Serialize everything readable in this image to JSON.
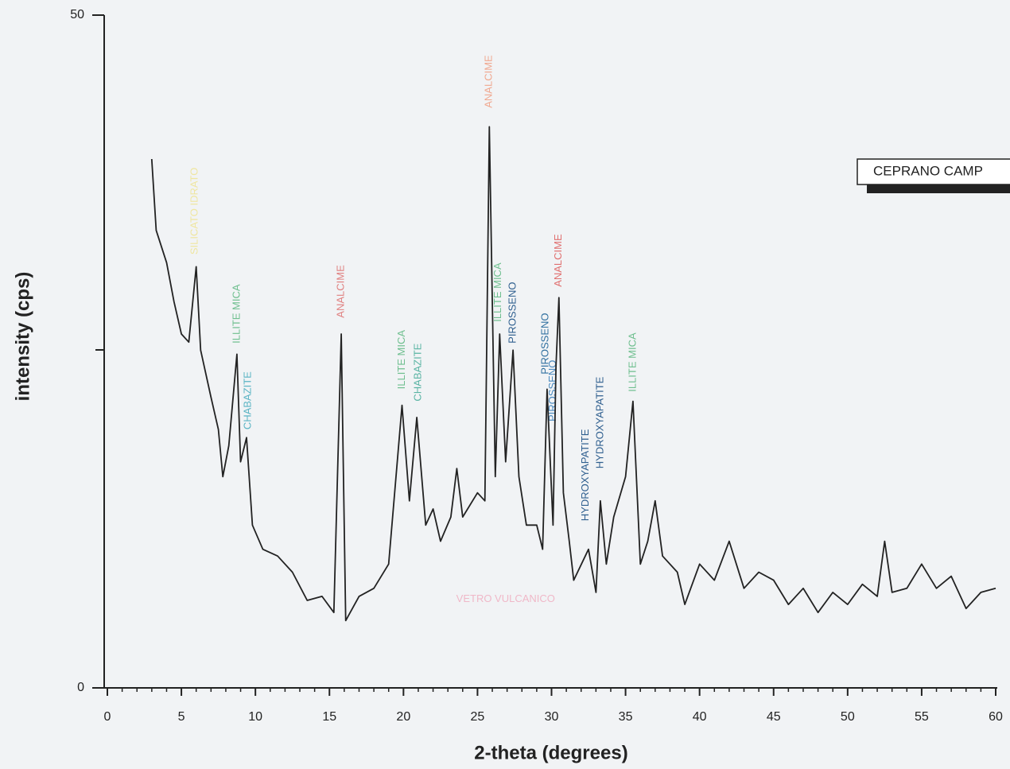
{
  "chart_data": {
    "type": "line",
    "xlabel": "2-theta (degrees)",
    "ylabel": "intensity (cps)",
    "xlim": [
      0,
      60
    ],
    "ylim": [
      0,
      50
    ],
    "xticks": [
      0,
      5,
      10,
      15,
      20,
      25,
      30,
      35,
      40,
      45,
      50,
      55,
      60
    ],
    "yticks": [
      0,
      50
    ],
    "series": [
      {
        "name": "CEPRANO CAMP",
        "color": "#222222",
        "x": [
          3.0,
          3.3,
          4,
          4.5,
          5,
          5.5,
          6.0,
          6.3,
          7,
          7.5,
          7.8,
          8.2,
          8.75,
          9.0,
          9.4,
          9.8,
          10.5,
          11.5,
          12.5,
          13.5,
          14.5,
          15.3,
          15.8,
          16.1,
          17,
          18,
          19,
          19.9,
          20.4,
          20.9,
          21.5,
          22,
          22.5,
          23.2,
          23.6,
          24,
          25,
          25.5,
          25.8,
          26.2,
          26.5,
          26.9,
          27.4,
          27.8,
          28.3,
          29,
          29.4,
          29.7,
          30.1,
          30.3,
          30.5,
          30.8,
          31.2,
          31.5,
          32.5,
          33.0,
          33.3,
          33.7,
          34.2,
          35,
          35.5,
          36,
          36.5,
          37,
          37.5,
          38.5,
          39,
          40,
          41,
          42,
          43,
          44,
          45,
          46,
          47,
          48,
          49,
          50,
          51,
          52,
          52.5,
          53,
          54,
          55,
          56,
          57,
          58,
          59,
          60
        ],
        "values": [
          39.3,
          34,
          31.6,
          28.7,
          26.3,
          25.7,
          31.3,
          25.1,
          21.6,
          19.2,
          15.7,
          18,
          24.8,
          16.8,
          18.6,
          12.1,
          10.3,
          9.8,
          8.6,
          6.5,
          6.8,
          5.6,
          26.3,
          5,
          6.8,
          7.4,
          9.2,
          21,
          13.9,
          20.1,
          12.1,
          13.3,
          10.9,
          12.7,
          16.3,
          12.7,
          14.5,
          13.9,
          41.7,
          15.7,
          26.3,
          16.8,
          25.1,
          15.7,
          12.1,
          12.1,
          10.3,
          22.2,
          12.1,
          23.9,
          29,
          14.5,
          10.9,
          8,
          10.3,
          7.1,
          13.9,
          9.2,
          12.7,
          15.7,
          21.3,
          9.2,
          10.9,
          13.9,
          9.8,
          8.6,
          6.2,
          9.2,
          8,
          10.9,
          7.4,
          8.6,
          8,
          6.2,
          7.4,
          5.6,
          7.1,
          6.2,
          7.7,
          6.8,
          10.9,
          7.1,
          7.4,
          9.2,
          7.4,
          8.3,
          5.9,
          7.1,
          7.4
        ]
      }
    ],
    "annotations": [
      {
        "text": "SILICATO IDRATO",
        "x": 5.9,
        "y": 32.2,
        "color": "#efe6a0",
        "vertical": true
      },
      {
        "text": "ILLITE MICA",
        "x": 8.75,
        "y": 25.6,
        "color": "#6fbf8f",
        "vertical": true
      },
      {
        "text": "CHABAZITE",
        "x": 9.5,
        "y": 19.2,
        "color": "#5ab4c4",
        "vertical": true
      },
      {
        "text": "ANALCIME",
        "x": 15.8,
        "y": 27.5,
        "color": "#e08080",
        "vertical": true
      },
      {
        "text": "ILLITE MICA",
        "x": 19.9,
        "y": 22.2,
        "color": "#6fbf8f",
        "vertical": true
      },
      {
        "text": "CHABAZITE",
        "x": 21.0,
        "y": 21.3,
        "color": "#5ab4a4",
        "vertical": true
      },
      {
        "text": "ANALCIME",
        "x": 25.8,
        "y": 43.1,
        "color": "#f0a890",
        "vertical": true
      },
      {
        "text": "ILLITE MICA",
        "x": 26.4,
        "y": 27.2,
        "color": "#6fbf8f",
        "vertical": true
      },
      {
        "text": "PIROSSENO",
        "x": 27.4,
        "y": 25.6,
        "color": "#2f5f8f",
        "vertical": true
      },
      {
        "text": "PIROSSENO",
        "x": 29.6,
        "y": 23.3,
        "color": "#2f6f9f",
        "vertical": true
      },
      {
        "text": "PIROSSENO",
        "x": 30.1,
        "y": 19.8,
        "color": "#4a8ac0",
        "vertical": true
      },
      {
        "text": "ANALCIME",
        "x": 30.5,
        "y": 29.8,
        "color": "#e07070",
        "vertical": true
      },
      {
        "text": "HYDROXYAPATITE",
        "x": 32.3,
        "y": 12.4,
        "color": "#2f5f8f",
        "vertical": true
      },
      {
        "text": "HYDROXYAPATITE",
        "x": 33.3,
        "y": 16.3,
        "color": "#2f5f8f",
        "vertical": true
      },
      {
        "text": "ILLITE MICA",
        "x": 35.5,
        "y": 22.0,
        "color": "#6fbf8f",
        "vertical": true
      },
      {
        "text": "VETRO VULCANICO",
        "x": 26.9,
        "y": 6.6,
        "color": "#f0b8c8",
        "vertical": false
      }
    ]
  }
}
